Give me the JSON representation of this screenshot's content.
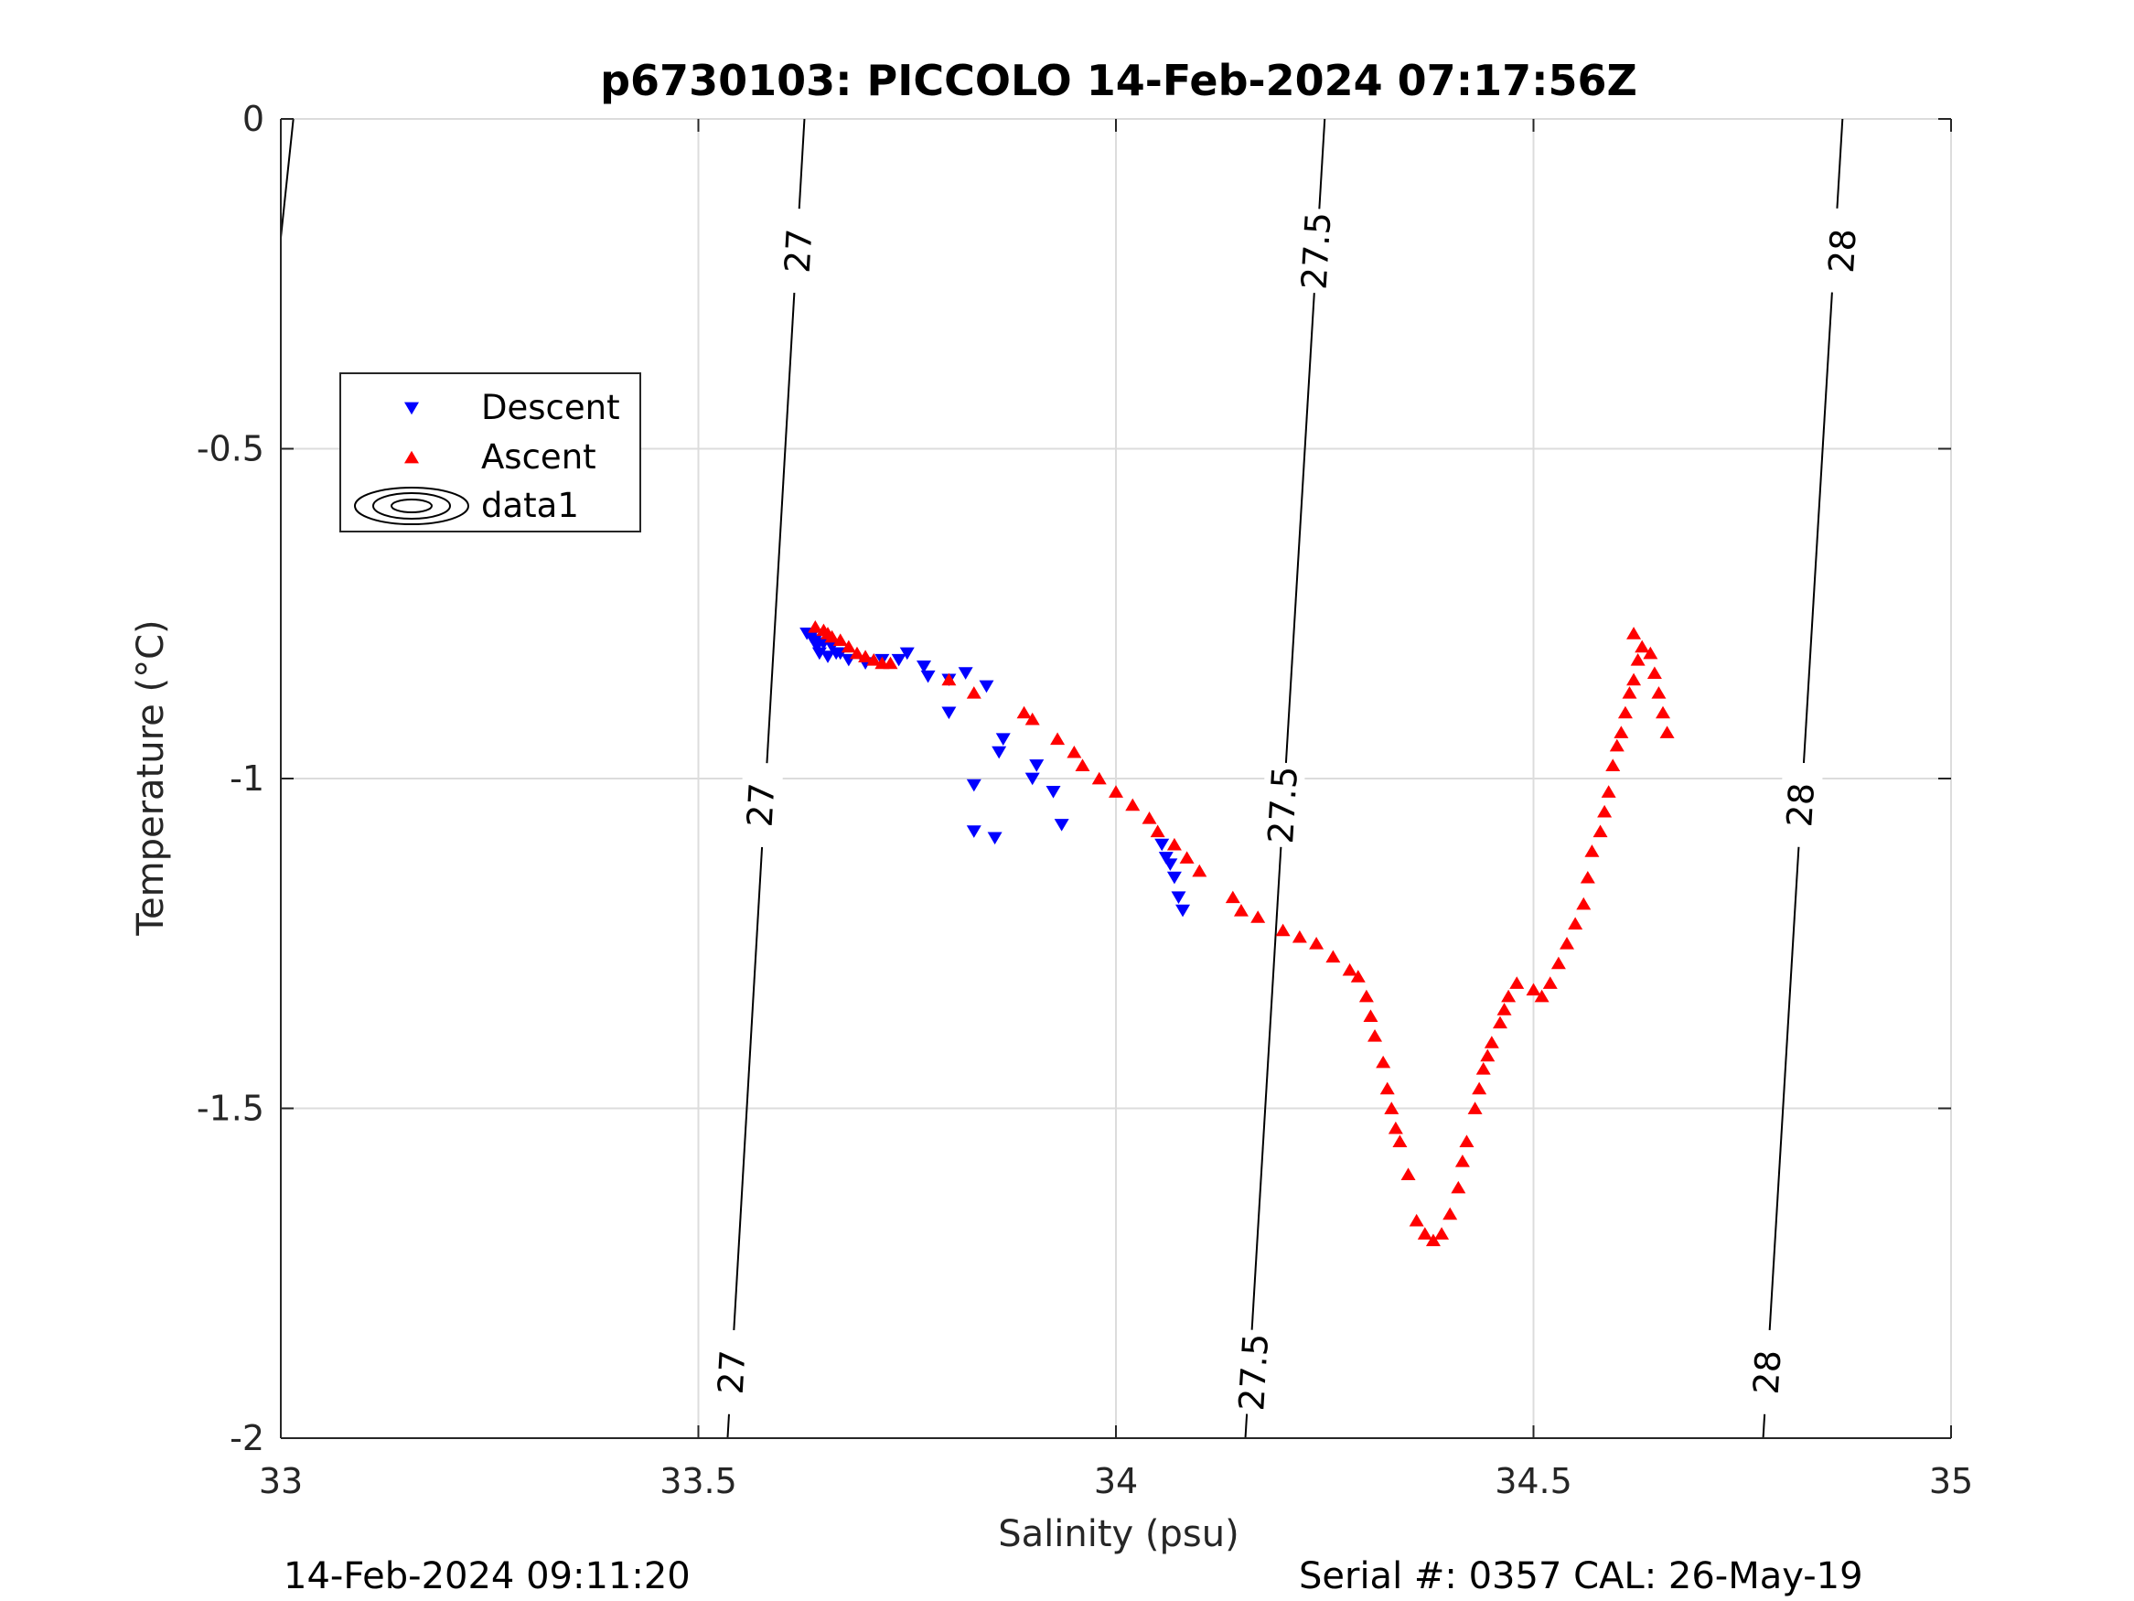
{
  "chart_data": {
    "type": "scatter",
    "title": "p6730103: PICCOLO 14-Feb-2024 07:17:56Z",
    "xlabel": "Salinity (psu)",
    "ylabel": "Temperature (°C)",
    "xlim": [
      33,
      35
    ],
    "ylim": [
      -2,
      0
    ],
    "xticks": [
      33,
      33.5,
      34,
      34.5,
      35
    ],
    "xtick_labels": [
      "33",
      "33.5",
      "34",
      "34.5",
      "35"
    ],
    "yticks": [
      0,
      -0.5,
      -1,
      -1.5,
      -2
    ],
    "ytick_labels": [
      "0",
      "-0.5",
      "-1",
      "-1.5",
      "-2"
    ],
    "grid": true,
    "legend_position": "upper-left",
    "footer_left": "14-Feb-2024 09:11:20",
    "footer_right": "Serial #: 0357  CAL: 26-May-19",
    "series": [
      {
        "name": "Descent",
        "marker": "triangle-down",
        "color": "#0000ff",
        "points": [
          [
            33.63,
            -0.78
          ],
          [
            33.635,
            -0.785
          ],
          [
            33.64,
            -0.79
          ],
          [
            33.642,
            -0.8
          ],
          [
            33.645,
            -0.81
          ],
          [
            33.65,
            -0.795
          ],
          [
            33.655,
            -0.815
          ],
          [
            33.66,
            -0.8
          ],
          [
            33.665,
            -0.81
          ],
          [
            33.67,
            -0.81
          ],
          [
            33.68,
            -0.82
          ],
          [
            33.7,
            -0.825
          ],
          [
            33.72,
            -0.82
          ],
          [
            33.74,
            -0.82
          ],
          [
            33.75,
            -0.81
          ],
          [
            33.77,
            -0.83
          ],
          [
            33.775,
            -0.845
          ],
          [
            33.8,
            -0.85
          ],
          [
            33.82,
            -0.84
          ],
          [
            33.845,
            -0.86
          ],
          [
            33.8,
            -0.9
          ],
          [
            33.865,
            -0.94
          ],
          [
            33.86,
            -0.96
          ],
          [
            33.905,
            -0.98
          ],
          [
            33.83,
            -1.01
          ],
          [
            33.9,
            -1.0
          ],
          [
            33.925,
            -1.02
          ],
          [
            33.83,
            -1.08
          ],
          [
            33.855,
            -1.09
          ],
          [
            33.935,
            -1.07
          ],
          [
            34.055,
            -1.1
          ],
          [
            34.06,
            -1.12
          ],
          [
            34.065,
            -1.13
          ],
          [
            34.07,
            -1.15
          ],
          [
            34.075,
            -1.18
          ],
          [
            34.08,
            -1.2
          ]
        ]
      },
      {
        "name": "Ascent",
        "marker": "triangle-up",
        "color": "#ff0000",
        "points": [
          [
            33.64,
            -0.77
          ],
          [
            33.65,
            -0.775
          ],
          [
            33.655,
            -0.78
          ],
          [
            33.66,
            -0.785
          ],
          [
            33.67,
            -0.79
          ],
          [
            33.68,
            -0.8
          ],
          [
            33.69,
            -0.81
          ],
          [
            33.7,
            -0.815
          ],
          [
            33.71,
            -0.82
          ],
          [
            33.72,
            -0.825
          ],
          [
            33.73,
            -0.825
          ],
          [
            33.8,
            -0.85
          ],
          [
            33.83,
            -0.87
          ],
          [
            33.89,
            -0.9
          ],
          [
            33.9,
            -0.91
          ],
          [
            33.93,
            -0.94
          ],
          [
            33.95,
            -0.96
          ],
          [
            33.96,
            -0.98
          ],
          [
            33.98,
            -1.0
          ],
          [
            34.0,
            -1.02
          ],
          [
            34.02,
            -1.04
          ],
          [
            34.04,
            -1.06
          ],
          [
            34.05,
            -1.08
          ],
          [
            34.07,
            -1.1
          ],
          [
            34.085,
            -1.12
          ],
          [
            34.1,
            -1.14
          ],
          [
            34.14,
            -1.18
          ],
          [
            34.15,
            -1.2
          ],
          [
            34.17,
            -1.21
          ],
          [
            34.2,
            -1.23
          ],
          [
            34.22,
            -1.24
          ],
          [
            34.24,
            -1.25
          ],
          [
            34.26,
            -1.27
          ],
          [
            34.28,
            -1.29
          ],
          [
            34.29,
            -1.3
          ],
          [
            34.3,
            -1.33
          ],
          [
            34.305,
            -1.36
          ],
          [
            34.31,
            -1.39
          ],
          [
            34.32,
            -1.43
          ],
          [
            34.325,
            -1.47
          ],
          [
            34.33,
            -1.5
          ],
          [
            34.335,
            -1.53
          ],
          [
            34.34,
            -1.55
          ],
          [
            34.35,
            -1.6
          ],
          [
            34.36,
            -1.67
          ],
          [
            34.37,
            -1.69
          ],
          [
            34.38,
            -1.7
          ],
          [
            34.39,
            -1.69
          ],
          [
            34.4,
            -1.66
          ],
          [
            34.41,
            -1.62
          ],
          [
            34.415,
            -1.58
          ],
          [
            34.42,
            -1.55
          ],
          [
            34.43,
            -1.5
          ],
          [
            34.435,
            -1.47
          ],
          [
            34.44,
            -1.44
          ],
          [
            34.445,
            -1.42
          ],
          [
            34.45,
            -1.4
          ],
          [
            34.46,
            -1.37
          ],
          [
            34.465,
            -1.35
          ],
          [
            34.47,
            -1.33
          ],
          [
            34.48,
            -1.31
          ],
          [
            34.5,
            -1.32
          ],
          [
            34.51,
            -1.33
          ],
          [
            34.52,
            -1.31
          ],
          [
            34.53,
            -1.28
          ],
          [
            34.54,
            -1.25
          ],
          [
            34.55,
            -1.22
          ],
          [
            34.56,
            -1.19
          ],
          [
            34.565,
            -1.15
          ],
          [
            34.57,
            -1.11
          ],
          [
            34.58,
            -1.08
          ],
          [
            34.585,
            -1.05
          ],
          [
            34.59,
            -1.02
          ],
          [
            34.595,
            -0.98
          ],
          [
            34.6,
            -0.95
          ],
          [
            34.605,
            -0.93
          ],
          [
            34.61,
            -0.9
          ],
          [
            34.615,
            -0.87
          ],
          [
            34.62,
            -0.85
          ],
          [
            34.625,
            -0.82
          ],
          [
            34.63,
            -0.8
          ],
          [
            34.64,
            -0.81
          ],
          [
            34.645,
            -0.84
          ],
          [
            34.65,
            -0.87
          ],
          [
            34.655,
            -0.9
          ],
          [
            34.66,
            -0.93
          ],
          [
            34.62,
            -0.78
          ]
        ]
      },
      {
        "name": "data1",
        "type": "contour",
        "color": "#000000",
        "levels": [
          {
            "label": "27",
            "label_positions": [
              [
                33.62,
                -0.2
              ],
              [
                33.575,
                -1.04
              ],
              [
                33.54,
                -1.9
              ]
            ],
            "line": [
              [
                33.627,
                0
              ],
              [
                33.535,
                -2
              ]
            ]
          },
          {
            "label": "27.5",
            "label_positions": [
              [
                34.24,
                -0.2
              ],
              [
                34.2,
                -1.04
              ],
              [
                34.165,
                -1.9
              ]
            ],
            "line": [
              [
                34.25,
                0
              ],
              [
                34.155,
                -2
              ]
            ]
          },
          {
            "label": "28",
            "label_positions": [
              [
                34.87,
                -0.2
              ],
              [
                34.82,
                -1.04
              ],
              [
                34.78,
                -1.9
              ]
            ],
            "line": [
              [
                34.87,
                0
              ],
              [
                34.775,
                -2
              ]
            ]
          },
          {
            "label": "",
            "label_positions": [],
            "line": [
              [
                33.015,
                0
              ],
              [
                33.0,
                -0.18
              ]
            ]
          }
        ]
      }
    ]
  }
}
